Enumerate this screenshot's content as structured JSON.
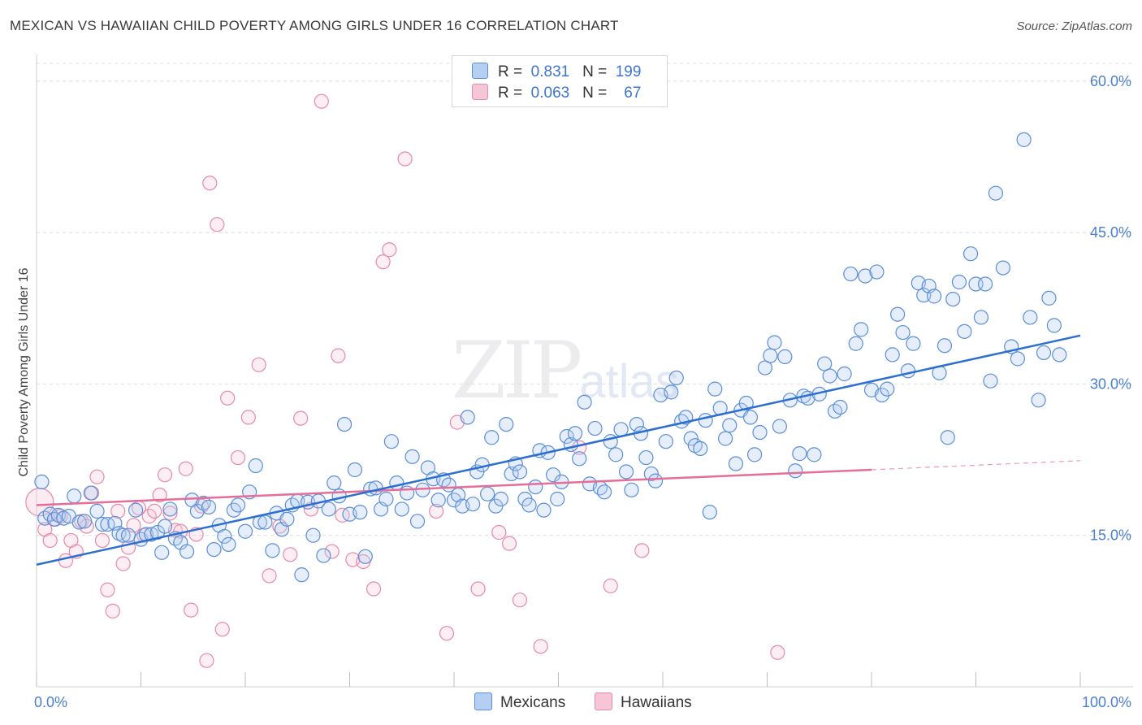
{
  "title": "MEXICAN VS HAWAIIAN CHILD POVERTY AMONG GIRLS UNDER 16 CORRELATION CHART",
  "source": "Source: ZipAtlas.com",
  "watermark": {
    "main": "ZIP",
    "sub": "atlas"
  },
  "legend": {
    "mexicans": {
      "r_label": "R =",
      "r_value": "0.831",
      "n_label": "N =",
      "n_value": "199"
    },
    "hawaiians": {
      "r_label": "R =",
      "r_value": "0.063",
      "n_label": "N =",
      "n_value": "67"
    }
  },
  "bottom_legend": {
    "mexicans": "Mexicans",
    "hawaiians": "Hawaiians"
  },
  "colors": {
    "mexicans_fill": "#b5cff2",
    "mexicans_stroke": "#5b8ed8",
    "mexicans_line": "#2c6fd0",
    "hawaiians_fill": "#f7c6d6",
    "hawaiians_stroke": "#e58aa8",
    "hawaiians_line": "#e56d97",
    "tick_text": "#4a7fd0",
    "grid": "#dcdcdc"
  },
  "chart_data": {
    "type": "scatter",
    "title": "MEXICAN VS HAWAIIAN CHILD POVERTY AMONG GIRLS UNDER 16 CORRELATION CHART",
    "xlabel": "",
    "ylabel": "Child Poverty Among Girls Under 16",
    "xlim": [
      0,
      100
    ],
    "ylim": [
      0,
      62
    ],
    "x_tick_labels": [
      "0.0%",
      "100.0%"
    ],
    "y_ticks": [
      15,
      30,
      45,
      60
    ],
    "y_tick_labels": [
      "15.0%",
      "30.0%",
      "45.0%",
      "60.0%"
    ],
    "grid": "horizontal dashed",
    "legend_position": "top-center",
    "series": [
      {
        "name": "Mexicans",
        "trend": {
          "x": [
            0,
            100
          ],
          "y": [
            12.1,
            34.8
          ]
        },
        "points": [
          [
            0.5,
            20.3
          ],
          [
            0.8,
            16.7
          ],
          [
            1.3,
            17.1
          ],
          [
            1.7,
            16.6
          ],
          [
            2.1,
            17.0
          ],
          [
            2.6,
            16.7
          ],
          [
            3.1,
            16.9
          ],
          [
            3.6,
            18.9
          ],
          [
            4.1,
            16.3
          ],
          [
            4.6,
            16.4
          ],
          [
            5.2,
            19.2
          ],
          [
            5.8,
            17.4
          ],
          [
            6.3,
            16.1
          ],
          [
            6.8,
            16.1
          ],
          [
            7.5,
            16.2
          ],
          [
            7.9,
            15.2
          ],
          [
            8.3,
            15.0
          ],
          [
            8.8,
            15.0
          ],
          [
            9.5,
            17.5
          ],
          [
            10.0,
            14.6
          ],
          [
            10.5,
            15.1
          ],
          [
            11.0,
            15.1
          ],
          [
            11.6,
            15.3
          ],
          [
            12.0,
            13.3
          ],
          [
            12.3,
            15.9
          ],
          [
            12.8,
            17.6
          ],
          [
            13.3,
            14.7
          ],
          [
            13.8,
            14.3
          ],
          [
            14.4,
            13.4
          ],
          [
            14.9,
            18.5
          ],
          [
            15.4,
            17.4
          ],
          [
            16.0,
            18.2
          ],
          [
            16.5,
            17.8
          ],
          [
            17.0,
            13.6
          ],
          [
            17.5,
            16.0
          ],
          [
            18.0,
            14.9
          ],
          [
            18.4,
            14.1
          ],
          [
            18.9,
            17.5
          ],
          [
            19.3,
            18.0
          ],
          [
            20.0,
            15.4
          ],
          [
            20.4,
            19.3
          ],
          [
            21.0,
            21.9
          ],
          [
            21.4,
            16.3
          ],
          [
            21.9,
            16.3
          ],
          [
            22.6,
            13.5
          ],
          [
            23.0,
            17.2
          ],
          [
            23.5,
            15.6
          ],
          [
            24.0,
            16.6
          ],
          [
            24.5,
            18.0
          ],
          [
            25.0,
            18.4
          ],
          [
            25.4,
            11.1
          ],
          [
            26.0,
            18.3
          ],
          [
            26.5,
            15.0
          ],
          [
            27.0,
            18.4
          ],
          [
            27.5,
            13.0
          ],
          [
            28.0,
            17.6
          ],
          [
            28.5,
            20.2
          ],
          [
            29.0,
            18.9
          ],
          [
            29.5,
            26.0
          ],
          [
            30.0,
            17.1
          ],
          [
            30.5,
            21.5
          ],
          [
            31.0,
            17.3
          ],
          [
            31.5,
            12.9
          ],
          [
            32.0,
            19.6
          ],
          [
            32.5,
            19.7
          ],
          [
            33.0,
            17.6
          ],
          [
            33.5,
            18.6
          ],
          [
            34.0,
            24.3
          ],
          [
            34.5,
            20.2
          ],
          [
            35.0,
            17.6
          ],
          [
            35.5,
            19.2
          ],
          [
            36.0,
            22.8
          ],
          [
            36.5,
            16.4
          ],
          [
            37.0,
            19.5
          ],
          [
            37.5,
            21.7
          ],
          [
            38.0,
            20.6
          ],
          [
            38.5,
            18.5
          ],
          [
            39.0,
            20.5
          ],
          [
            39.5,
            20.0
          ],
          [
            40.0,
            18.5
          ],
          [
            40.4,
            19.0
          ],
          [
            40.8,
            17.9
          ],
          [
            41.3,
            26.7
          ],
          [
            41.8,
            18.1
          ],
          [
            42.2,
            21.3
          ],
          [
            42.7,
            22.0
          ],
          [
            43.2,
            19.1
          ],
          [
            43.6,
            24.7
          ],
          [
            44.0,
            17.9
          ],
          [
            44.5,
            18.6
          ],
          [
            45.0,
            26.0
          ],
          [
            45.5,
            21.1
          ],
          [
            45.9,
            22.1
          ],
          [
            46.3,
            21.3
          ],
          [
            46.8,
            18.6
          ],
          [
            47.2,
            18.0
          ],
          [
            47.8,
            19.8
          ],
          [
            48.2,
            23.4
          ],
          [
            48.6,
            17.5
          ],
          [
            49.0,
            23.2
          ],
          [
            49.5,
            21.0
          ],
          [
            49.9,
            18.6
          ],
          [
            50.3,
            20.3
          ],
          [
            50.8,
            24.8
          ],
          [
            51.2,
            24.0
          ],
          [
            51.6,
            25.1
          ],
          [
            52.0,
            22.6
          ],
          [
            52.5,
            28.2
          ],
          [
            53.0,
            20.1
          ],
          [
            53.5,
            25.6
          ],
          [
            54.0,
            19.7
          ],
          [
            54.4,
            19.3
          ],
          [
            55.0,
            24.3
          ],
          [
            55.5,
            23.0
          ],
          [
            56.0,
            25.5
          ],
          [
            56.5,
            21.3
          ],
          [
            57.0,
            19.5
          ],
          [
            57.5,
            26.0
          ],
          [
            57.9,
            25.1
          ],
          [
            58.4,
            22.7
          ],
          [
            58.9,
            21.1
          ],
          [
            59.3,
            20.4
          ],
          [
            59.8,
            28.9
          ],
          [
            60.3,
            24.3
          ],
          [
            60.8,
            29.2
          ],
          [
            61.3,
            30.6
          ],
          [
            61.8,
            26.3
          ],
          [
            62.2,
            26.7
          ],
          [
            62.7,
            24.6
          ],
          [
            63.1,
            23.9
          ],
          [
            63.6,
            23.6
          ],
          [
            64.1,
            26.4
          ],
          [
            64.5,
            17.3
          ],
          [
            65.0,
            29.5
          ],
          [
            65.5,
            27.6
          ],
          [
            66.0,
            24.6
          ],
          [
            66.4,
            25.9
          ],
          [
            67.0,
            22.1
          ],
          [
            67.5,
            27.4
          ],
          [
            68.0,
            28.1
          ],
          [
            68.4,
            26.7
          ],
          [
            68.8,
            23.0
          ],
          [
            69.3,
            25.2
          ],
          [
            69.8,
            31.6
          ],
          [
            70.3,
            32.8
          ],
          [
            70.7,
            34.1
          ],
          [
            71.2,
            25.8
          ],
          [
            71.7,
            32.7
          ],
          [
            72.2,
            28.4
          ],
          [
            72.7,
            21.4
          ],
          [
            73.1,
            23.1
          ],
          [
            73.5,
            28.8
          ],
          [
            73.9,
            28.6
          ],
          [
            74.5,
            23.0
          ],
          [
            75.0,
            29.0
          ],
          [
            75.5,
            32.0
          ],
          [
            76.0,
            30.8
          ],
          [
            76.5,
            27.3
          ],
          [
            77.0,
            27.7
          ],
          [
            77.4,
            31.0
          ],
          [
            78.0,
            40.9
          ],
          [
            78.5,
            34.0
          ],
          [
            79.0,
            35.4
          ],
          [
            79.4,
            40.7
          ],
          [
            80.0,
            29.4
          ],
          [
            80.5,
            41.1
          ],
          [
            81.0,
            28.9
          ],
          [
            81.5,
            29.5
          ],
          [
            82.0,
            32.9
          ],
          [
            82.5,
            36.9
          ],
          [
            83.0,
            35.1
          ],
          [
            83.5,
            31.3
          ],
          [
            84.0,
            34.0
          ],
          [
            84.5,
            40.0
          ],
          [
            85.0,
            38.8
          ],
          [
            85.5,
            39.7
          ],
          [
            86.0,
            38.7
          ],
          [
            86.5,
            31.1
          ],
          [
            87.0,
            33.8
          ],
          [
            87.3,
            24.7
          ],
          [
            87.8,
            38.4
          ],
          [
            88.4,
            40.1
          ],
          [
            88.9,
            35.2
          ],
          [
            89.5,
            42.9
          ],
          [
            90.0,
            39.9
          ],
          [
            90.5,
            36.6
          ],
          [
            90.9,
            39.9
          ],
          [
            91.4,
            30.3
          ],
          [
            91.9,
            48.9
          ],
          [
            92.6,
            41.5
          ],
          [
            93.4,
            33.7
          ],
          [
            94.0,
            32.5
          ],
          [
            94.6,
            54.2
          ],
          [
            95.2,
            36.6
          ],
          [
            96.0,
            28.4
          ],
          [
            96.5,
            33.1
          ],
          [
            97.0,
            38.5
          ],
          [
            97.5,
            35.8
          ],
          [
            98.0,
            32.9
          ]
        ]
      },
      {
        "name": "Hawaiians",
        "trend": {
          "x": [
            0,
            80
          ],
          "y": [
            18.0,
            21.5
          ]
        },
        "trend_extension": {
          "x": [
            80,
            100
          ],
          "y": [
            21.5,
            22.4
          ]
        },
        "points": [
          [
            0.3,
            18.3
          ],
          [
            0.8,
            15.6
          ],
          [
            1.3,
            14.5
          ],
          [
            1.8,
            16.6
          ],
          [
            2.3,
            16.9
          ],
          [
            2.8,
            12.5
          ],
          [
            3.3,
            14.5
          ],
          [
            3.8,
            13.4
          ],
          [
            4.3,
            16.4
          ],
          [
            4.8,
            15.9
          ],
          [
            5.3,
            19.2
          ],
          [
            5.8,
            20.8
          ],
          [
            6.3,
            14.5
          ],
          [
            6.8,
            9.6
          ],
          [
            7.3,
            7.5
          ],
          [
            7.8,
            17.4
          ],
          [
            8.3,
            12.2
          ],
          [
            8.8,
            13.8
          ],
          [
            9.3,
            16.0
          ],
          [
            9.8,
            17.7
          ],
          [
            10.3,
            15.0
          ],
          [
            10.8,
            16.9
          ],
          [
            11.3,
            17.4
          ],
          [
            11.8,
            19.0
          ],
          [
            12.3,
            21.0
          ],
          [
            12.8,
            17.2
          ],
          [
            13.3,
            15.5
          ],
          [
            13.8,
            15.4
          ],
          [
            14.3,
            21.6
          ],
          [
            14.8,
            7.6
          ],
          [
            15.3,
            15.1
          ],
          [
            15.8,
            17.9
          ],
          [
            16.3,
            2.6
          ],
          [
            16.6,
            49.9
          ],
          [
            17.3,
            45.8
          ],
          [
            17.8,
            5.7
          ],
          [
            18.3,
            28.6
          ],
          [
            19.3,
            22.7
          ],
          [
            20.3,
            26.7
          ],
          [
            21.3,
            31.9
          ],
          [
            22.3,
            11.0
          ],
          [
            23.3,
            15.9
          ],
          [
            24.3,
            13.1
          ],
          [
            25.3,
            26.6
          ],
          [
            26.3,
            17.6
          ],
          [
            27.3,
            58.0
          ],
          [
            28.3,
            13.4
          ],
          [
            28.9,
            32.8
          ],
          [
            29.3,
            17.0
          ],
          [
            30.3,
            12.6
          ],
          [
            31.3,
            12.4
          ],
          [
            32.3,
            9.7
          ],
          [
            33.2,
            42.1
          ],
          [
            33.8,
            43.3
          ],
          [
            35.3,
            52.3
          ],
          [
            38.3,
            17.4
          ],
          [
            39.3,
            5.3
          ],
          [
            40.3,
            26.2
          ],
          [
            42.3,
            9.7
          ],
          [
            44.3,
            15.3
          ],
          [
            45.3,
            14.2
          ],
          [
            46.3,
            8.6
          ],
          [
            48.3,
            4.0
          ],
          [
            52.0,
            23.7
          ],
          [
            55.0,
            10.0
          ],
          [
            58.0,
            13.5
          ],
          [
            71.0,
            3.4
          ]
        ]
      }
    ]
  }
}
